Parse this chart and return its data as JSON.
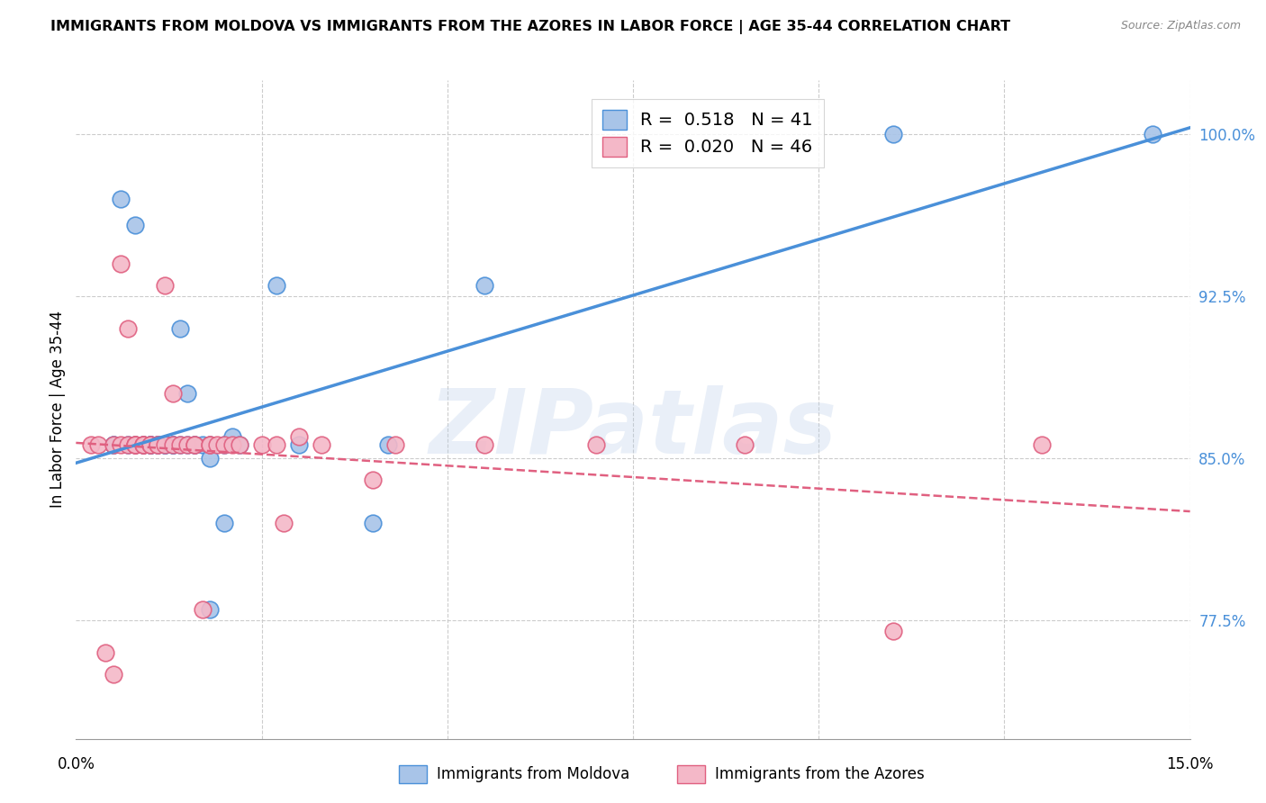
{
  "title": "IMMIGRANTS FROM MOLDOVA VS IMMIGRANTS FROM THE AZORES IN LABOR FORCE | AGE 35-44 CORRELATION CHART",
  "source": "Source: ZipAtlas.com",
  "ylabel": "In Labor Force | Age 35-44",
  "xlim": [
    0.0,
    0.15
  ],
  "ylim": [
    0.72,
    1.025
  ],
  "R_moldova": 0.518,
  "N_moldova": 41,
  "R_azores": 0.02,
  "N_azores": 46,
  "color_moldova": "#a8c4e8",
  "color_azores": "#f4b8c8",
  "line_color_moldova": "#4a90d9",
  "line_color_azores": "#e06080",
  "legend_label_moldova": "Immigrants from Moldova",
  "legend_label_azores": "Immigrants from the Azores",
  "scatter_moldova_x": [
    0.005,
    0.005,
    0.006,
    0.007,
    0.008,
    0.008,
    0.009,
    0.009,
    0.01,
    0.01,
    0.01,
    0.01,
    0.011,
    0.011,
    0.012,
    0.012,
    0.012,
    0.013,
    0.013,
    0.013,
    0.014,
    0.014,
    0.015,
    0.015,
    0.016,
    0.016,
    0.017,
    0.018,
    0.018,
    0.018,
    0.02,
    0.02,
    0.021,
    0.022,
    0.027,
    0.03,
    0.04,
    0.042,
    0.055,
    0.11,
    0.145
  ],
  "scatter_moldova_y": [
    0.856,
    0.856,
    0.97,
    0.856,
    0.958,
    0.856,
    0.856,
    0.856,
    0.856,
    0.856,
    0.856,
    0.856,
    0.856,
    0.856,
    0.856,
    0.856,
    0.856,
    0.856,
    0.856,
    0.856,
    0.91,
    0.856,
    0.88,
    0.856,
    0.856,
    0.856,
    0.856,
    0.856,
    0.85,
    0.78,
    0.856,
    0.82,
    0.86,
    0.856,
    0.93,
    0.856,
    0.82,
    0.856,
    0.93,
    1.0,
    1.0
  ],
  "scatter_azores_x": [
    0.002,
    0.003,
    0.004,
    0.005,
    0.005,
    0.006,
    0.006,
    0.007,
    0.007,
    0.008,
    0.008,
    0.008,
    0.009,
    0.009,
    0.009,
    0.01,
    0.01,
    0.011,
    0.011,
    0.012,
    0.012,
    0.013,
    0.013,
    0.014,
    0.015,
    0.016,
    0.016,
    0.017,
    0.018,
    0.018,
    0.019,
    0.02,
    0.021,
    0.022,
    0.025,
    0.027,
    0.028,
    0.03,
    0.033,
    0.04,
    0.043,
    0.055,
    0.07,
    0.09,
    0.11,
    0.13
  ],
  "scatter_azores_y": [
    0.856,
    0.856,
    0.76,
    0.75,
    0.856,
    0.856,
    0.94,
    0.856,
    0.91,
    0.856,
    0.856,
    0.856,
    0.856,
    0.856,
    0.856,
    0.856,
    0.856,
    0.856,
    0.856,
    0.856,
    0.93,
    0.856,
    0.88,
    0.856,
    0.856,
    0.856,
    0.856,
    0.78,
    0.856,
    0.856,
    0.856,
    0.856,
    0.856,
    0.856,
    0.856,
    0.856,
    0.82,
    0.86,
    0.856,
    0.84,
    0.856,
    0.856,
    0.856,
    0.856,
    0.77,
    0.856
  ],
  "watermark": "ZIPatlas",
  "background_color": "#ffffff",
  "grid_color": "#cccccc",
  "ytick_vals": [
    0.775,
    0.85,
    0.925,
    1.0
  ],
  "ytick_labels": [
    "77.5%",
    "85.0%",
    "92.5%",
    "100.0%"
  ],
  "xtick_vals": [
    0.0,
    0.025,
    0.05,
    0.075,
    0.1,
    0.125,
    0.15
  ],
  "grid_yticks": [
    0.775,
    0.85,
    0.925,
    1.0
  ],
  "grid_xticks": [
    0.025,
    0.05,
    0.075,
    0.1,
    0.125,
    0.15
  ]
}
